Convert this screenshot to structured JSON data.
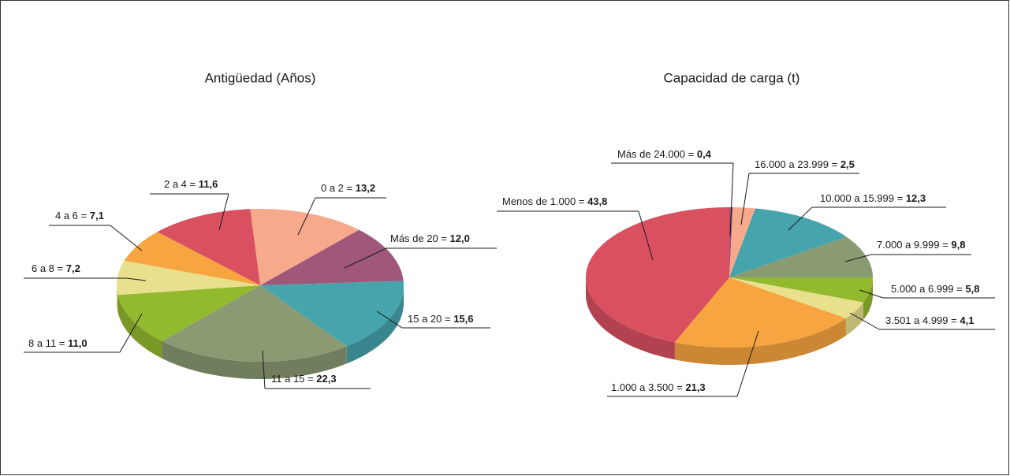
{
  "chart_data": [
    {
      "type": "pie",
      "title": "Antigüedad (Años)",
      "separator": " = ",
      "categories": [
        "0 a 2",
        "Más de 20",
        "15 a 20",
        "11 a 15",
        "8 a 11",
        "6 a 8",
        "4 a 6",
        "2 a 4"
      ],
      "values": [
        13.2,
        12.0,
        15.6,
        22.3,
        11.0,
        7.2,
        7.1,
        11.6
      ],
      "value_labels": [
        "13,2",
        "12,0",
        "15,6",
        "22,3",
        "11,0",
        "7,2",
        "7,1",
        "11,6"
      ],
      "colors": [
        "#f7a98b",
        "#a0577a",
        "#46a4ad",
        "#8a9a72",
        "#93b92f",
        "#e8e08d",
        "#f7a540",
        "#d95060"
      ]
    },
    {
      "type": "pie",
      "title": "Capacidad de carga (t)",
      "separator": " = ",
      "categories": [
        "Más de 24.000",
        "16.000 a 23.999",
        "10.000 a 15.999",
        "7.000 a 9.999",
        "5.000 a 6.999",
        "3.501 a 4.999",
        "1.000 a 3.500",
        "Menos de 1.000"
      ],
      "values": [
        0.4,
        2.5,
        12.3,
        9.8,
        5.8,
        4.1,
        21.3,
        43.8
      ],
      "value_labels": [
        "0,4",
        "2,5",
        "12,3",
        "9,8",
        "5,8",
        "4,1",
        "21,3",
        "43,8"
      ],
      "colors": [
        "#a0577a",
        "#f7a98b",
        "#46a4ad",
        "#8a9a72",
        "#93b92f",
        "#e8e08d",
        "#f7a540",
        "#d95060"
      ]
    }
  ]
}
